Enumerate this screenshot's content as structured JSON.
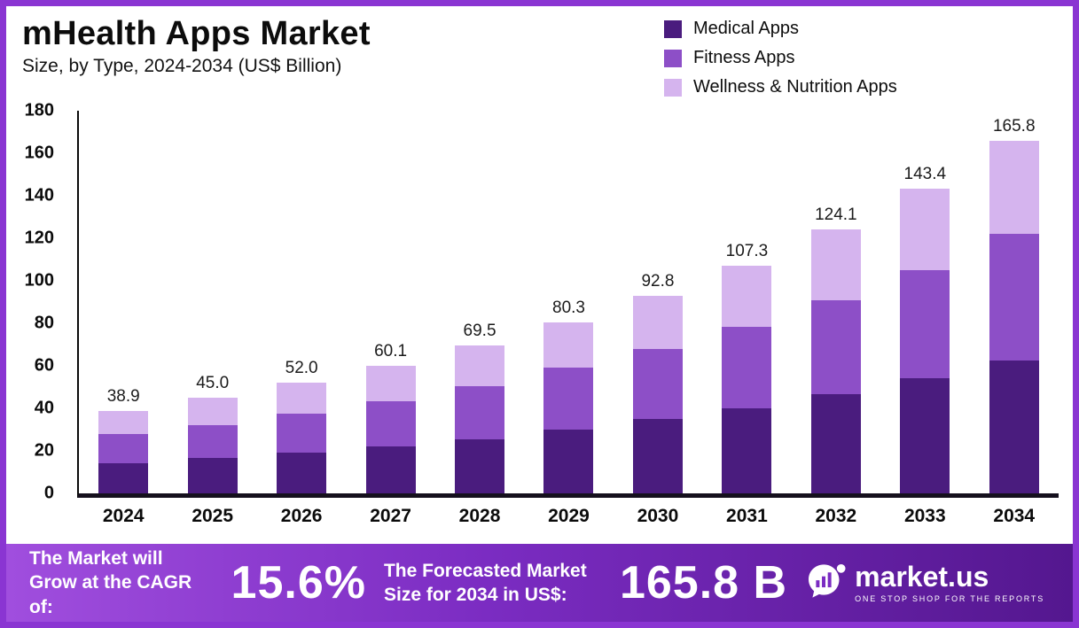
{
  "header": {
    "title": "mHealth Apps Market",
    "subtitle": "Size, by Type, 2024-2034 (US$ Billion)"
  },
  "legend": [
    {
      "label": "Medical Apps",
      "color": "#4a1c7e"
    },
    {
      "label": "Fitness Apps",
      "color": "#8d4fc7"
    },
    {
      "label": "Wellness & Nutrition Apps",
      "color": "#d5b4ee"
    }
  ],
  "chart_data": {
    "type": "bar",
    "stacked": true,
    "title": "mHealth Apps Market Size, by Type, 2024-2034 (US$ Billion)",
    "categories": [
      "2024",
      "2025",
      "2026",
      "2027",
      "2028",
      "2029",
      "2030",
      "2031",
      "2032",
      "2033",
      "2034"
    ],
    "series": [
      {
        "name": "Medical Apps",
        "color": "#4a1c7e",
        "values": [
          14.0,
          16.5,
          19.0,
          22.0,
          25.5,
          30.0,
          35.0,
          40.0,
          46.5,
          54.0,
          62.5
        ]
      },
      {
        "name": "Fitness Apps",
        "color": "#8d4fc7",
        "values": [
          14.0,
          15.5,
          18.5,
          21.5,
          25.0,
          29.0,
          33.0,
          38.5,
          44.5,
          51.0,
          59.5
        ]
      },
      {
        "name": "Wellness & Nutrition Apps",
        "color": "#d5b4ee",
        "values": [
          10.9,
          13.0,
          14.5,
          16.6,
          19.0,
          21.3,
          24.8,
          28.8,
          33.1,
          38.4,
          43.8
        ]
      }
    ],
    "totals": [
      38.9,
      45.0,
      52.0,
      60.1,
      69.5,
      80.3,
      92.8,
      107.3,
      124.1,
      143.4,
      165.8
    ],
    "xlabel": "",
    "ylabel": "",
    "ylim": [
      0,
      180
    ],
    "yticks": [
      0,
      20,
      40,
      60,
      80,
      100,
      120,
      140,
      160,
      180
    ],
    "grid": false,
    "legend_position": "top-right"
  },
  "banner": {
    "cagr_label": "The Market will Grow at the CAGR of:",
    "cagr_value": "15.6%",
    "forecast_label": "The Forecasted Market Size for 2034 in US$:",
    "forecast_value": "165.8 B",
    "brand": "market.us",
    "brand_tagline": "ONE STOP SHOP FOR THE REPORTS"
  },
  "icons": {
    "brand": "marketus-logo-icon"
  },
  "colors": {
    "border": "#8a35d2",
    "banner_gradient_start": "#a04ede",
    "banner_gradient_end": "#54178f",
    "axis": "#15101d",
    "text": "#0d0d0d"
  }
}
